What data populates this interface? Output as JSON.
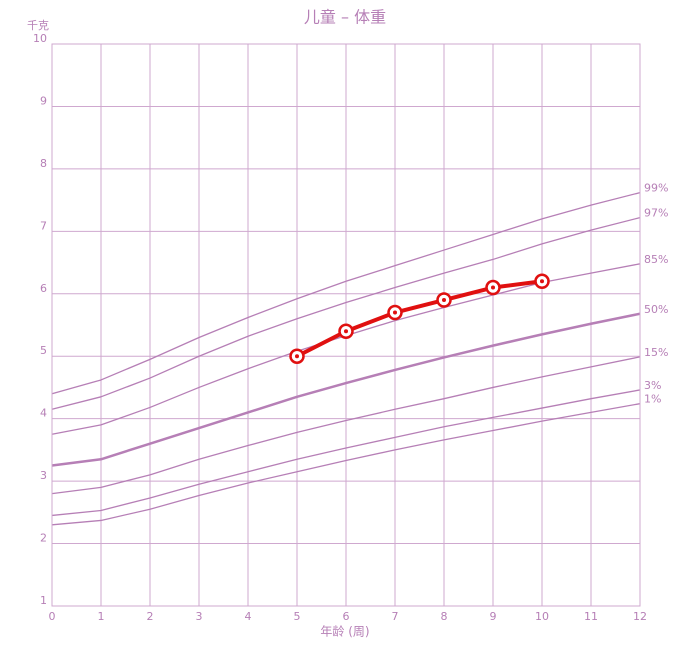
{
  "chart_data": {
    "type": "line",
    "title": "儿童 – 体重",
    "y_label": "千克",
    "x_label": "年龄 (周)",
    "x": [
      0,
      1,
      2,
      3,
      4,
      5,
      6,
      7,
      8,
      9,
      10,
      11,
      12
    ],
    "xlim": [
      0,
      12
    ],
    "xticks": [
      0,
      1,
      2,
      3,
      4,
      5,
      6,
      7,
      8,
      9,
      10,
      11,
      12
    ],
    "ylim": [
      1,
      10
    ],
    "yticks": [
      1,
      2,
      3,
      4,
      5,
      6,
      7,
      8,
      9,
      10
    ],
    "grid": true,
    "series": [
      {
        "name": "99%",
        "color": "#b67fb6",
        "values": [
          4.4,
          4.62,
          4.95,
          5.3,
          5.62,
          5.92,
          6.2,
          6.45,
          6.7,
          6.95,
          7.2,
          7.42,
          7.62
        ]
      },
      {
        "name": "97%",
        "color": "#b67fb6",
        "values": [
          4.15,
          4.35,
          4.65,
          5.0,
          5.32,
          5.6,
          5.86,
          6.1,
          6.33,
          6.55,
          6.8,
          7.02,
          7.22
        ]
      },
      {
        "name": "85%",
        "color": "#b67fb6",
        "values": [
          3.75,
          3.9,
          4.18,
          4.5,
          4.8,
          5.08,
          5.33,
          5.57,
          5.78,
          5.98,
          6.18,
          6.33,
          6.48
        ]
      },
      {
        "name": "50%",
        "color": "#b67fb6",
        "values": [
          3.25,
          3.35,
          3.6,
          3.85,
          4.1,
          4.35,
          4.57,
          4.78,
          4.98,
          5.17,
          5.35,
          5.52,
          5.68
        ]
      },
      {
        "name": "15%",
        "color": "#b67fb6",
        "values": [
          2.8,
          2.9,
          3.1,
          3.35,
          3.57,
          3.78,
          3.97,
          4.15,
          4.32,
          4.5,
          4.67,
          4.83,
          4.99
        ]
      },
      {
        "name": "3%",
        "color": "#b67fb6",
        "values": [
          2.45,
          2.53,
          2.73,
          2.95,
          3.15,
          3.35,
          3.53,
          3.7,
          3.87,
          4.02,
          4.17,
          4.32,
          4.46
        ]
      },
      {
        "name": "1%",
        "color": "#b67fb6",
        "values": [
          2.3,
          2.37,
          2.55,
          2.77,
          2.97,
          3.15,
          3.33,
          3.5,
          3.66,
          3.81,
          3.96,
          4.1,
          4.24
        ]
      },
      {
        "color": "#e01010",
        "values": [
          null,
          null,
          null,
          null,
          null,
          5.0,
          5.4,
          5.7,
          5.9,
          6.1,
          6.2,
          null,
          null
        ]
      }
    ]
  }
}
